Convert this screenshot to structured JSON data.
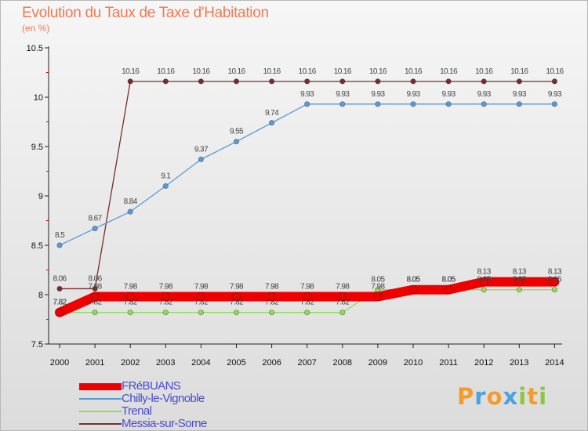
{
  "chart_data": {
    "type": "line",
    "title": "Evolution du Taux de Taxe d'Habitation",
    "subtitle": "(en %)",
    "xlabel": "",
    "ylabel": "",
    "ylim": [
      7.5,
      10.5
    ],
    "yticks": [
      "7.5",
      "8",
      "8.5",
      "9",
      "9.5",
      "10",
      "10.5"
    ],
    "categories": [
      "2000",
      "2001",
      "2002",
      "2003",
      "2004",
      "2005",
      "2006",
      "2007",
      "2008",
      "2009",
      "2010",
      "2011",
      "2012",
      "2013",
      "2014"
    ],
    "series": [
      {
        "name": "FRéBUANS",
        "color": "#ee0000",
        "values": [
          7.82,
          7.98,
          7.98,
          7.98,
          7.98,
          7.98,
          7.98,
          7.98,
          7.98,
          7.98,
          8.05,
          8.05,
          8.13,
          8.13,
          8.13
        ],
        "labels": [
          "7.82",
          "7.98",
          "7.98",
          "7.98",
          "7.98",
          "7.98",
          "7.98",
          "7.98",
          "7.98",
          "7.98",
          "8.05",
          "8.05",
          "8.13",
          "8.13",
          "8.13"
        ]
      },
      {
        "name": "Chilly-le-Vignoble",
        "color": "#5b9bd5",
        "values": [
          8.5,
          8.67,
          8.84,
          9.1,
          9.37,
          9.55,
          9.74,
          9.93,
          9.93,
          9.93,
          9.93,
          9.93,
          9.93,
          9.93,
          9.93
        ],
        "labels": [
          "8.5",
          "8.67",
          "8.84",
          "9.1",
          "9.37",
          "9.55",
          "9.74",
          "9.93",
          "9.93",
          "9.93",
          "9.93",
          "9.93",
          "9.93",
          "9.93",
          "9.93"
        ]
      },
      {
        "name": "Trenal",
        "color": "#8fdc5a",
        "values": [
          7.82,
          7.82,
          7.82,
          7.82,
          7.82,
          7.82,
          7.82,
          7.82,
          7.82,
          8.05,
          8.05,
          8.05,
          8.05,
          8.05,
          8.05
        ],
        "labels": [
          "7.82",
          "7.82",
          "7.82",
          "7.82",
          "7.82",
          "7.82",
          "7.82",
          "7.82",
          "7.82",
          "8.05",
          "8.05",
          "8.05",
          "8.05",
          "8.05",
          "8.05"
        ]
      },
      {
        "name": "Messia-sur-Sorne",
        "color": "#7b2c2c",
        "values": [
          8.06,
          8.06,
          10.16,
          10.16,
          10.16,
          10.16,
          10.16,
          10.16,
          10.16,
          10.16,
          10.16,
          10.16,
          10.16,
          10.16,
          10.16
        ],
        "labels": [
          "8.06",
          "8.06",
          "10.16",
          "10.16",
          "10.16",
          "10.16",
          "10.16",
          "10.16",
          "10.16",
          "10.16",
          "10.16",
          "10.16",
          "10.16",
          "10.16",
          "10.16"
        ]
      }
    ],
    "legend_position": "bottom-left",
    "grid": false
  },
  "brand": {
    "text": "Proxiti",
    "letters": [
      {
        "ch": "P",
        "color": "#f39c2a"
      },
      {
        "ch": "r",
        "color": "#4aa3df"
      },
      {
        "ch": "o",
        "color": "#f39c2a"
      },
      {
        "ch": "x",
        "color": "#4aa3df"
      },
      {
        "ch": "i",
        "color": "#8cc63f"
      },
      {
        "ch": "t",
        "color": "#f39c2a"
      },
      {
        "ch": "i",
        "color": "#8cc63f"
      }
    ]
  }
}
